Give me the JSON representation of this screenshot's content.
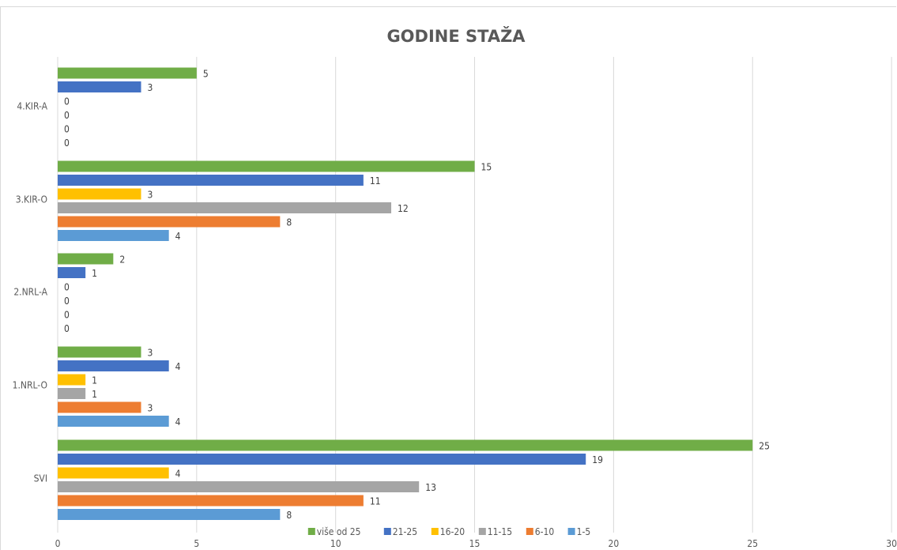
{
  "chart_data": {
    "type": "bar",
    "orientation": "horizontal",
    "title": "GODINE STAŽA",
    "xlabel": "",
    "ylabel": "",
    "xlim": [
      0,
      30
    ],
    "x_ticks": [
      0,
      5,
      10,
      15,
      20,
      25,
      30
    ],
    "grid": true,
    "legend_position": "bottom",
    "categories": [
      "SVI",
      "1.NRL-O",
      "2.NRL-A",
      "3.KIR-O",
      "4.KIR-A"
    ],
    "series": [
      {
        "name": "1-5",
        "color": "#5b9bd5",
        "values": [
          8,
          4,
          0,
          4,
          0
        ]
      },
      {
        "name": "6-10",
        "color": "#ed7d31",
        "values": [
          11,
          3,
          0,
          8,
          0
        ]
      },
      {
        "name": "11-15",
        "color": "#a5a5a5",
        "values": [
          13,
          1,
          0,
          12,
          0
        ]
      },
      {
        "name": "16-20",
        "color": "#ffc000",
        "values": [
          4,
          1,
          0,
          3,
          0
        ]
      },
      {
        "name": "21-25",
        "color": "#4472c4",
        "values": [
          19,
          4,
          1,
          11,
          3
        ]
      },
      {
        "name": "više od 25",
        "color": "#70ad47",
        "values": [
          25,
          3,
          2,
          15,
          5
        ]
      }
    ]
  }
}
